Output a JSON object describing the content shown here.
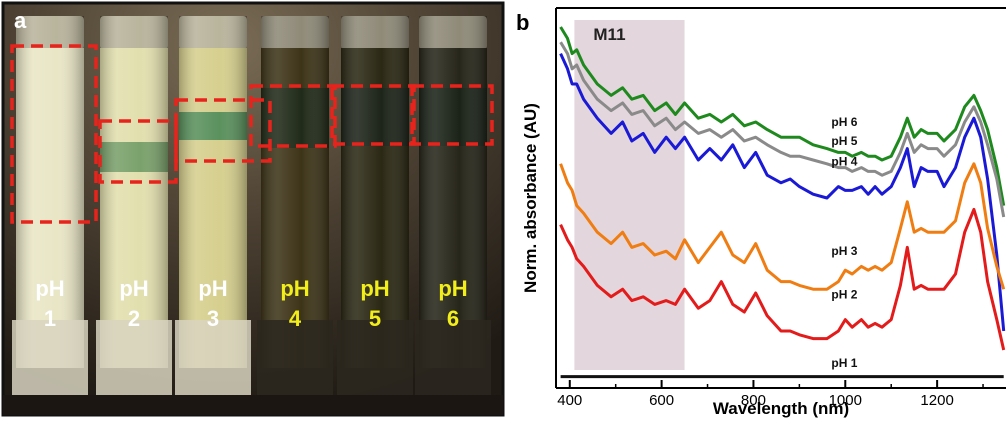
{
  "panel_a": {
    "label": "a",
    "background": "#3a3228",
    "tubes": [
      {
        "ph_word": "pH",
        "ph_num": "1",
        "label_color": "#ffffff",
        "liquid": "#e9e6c6",
        "band": null,
        "dark": false
      },
      {
        "ph_word": "pH",
        "ph_num": "2",
        "label_color": "#ffffff",
        "liquid": "#e2dfae",
        "band": "#6f9a64",
        "dark": false
      },
      {
        "ph_word": "pH",
        "ph_num": "3",
        "label_color": "#ffffff",
        "liquid": "#d6cf8e",
        "band": "#4c8a58",
        "dark": false
      },
      {
        "ph_word": "pH",
        "ph_num": "4",
        "label_color": "#f2ee1a",
        "liquid": "#3d3418",
        "band": "#1e2a1a",
        "dark": true
      },
      {
        "ph_word": "pH",
        "ph_num": "5",
        "label_color": "#f2ee1a",
        "liquid": "#2b2814",
        "band": "#1c2419",
        "dark": true
      },
      {
        "ph_word": "pH",
        "ph_num": "6",
        "label_color": "#f2ee1a",
        "liquid": "#27261a",
        "band": "#1b2318",
        "dark": true
      }
    ],
    "box_color": "#e8231c"
  },
  "chart_data": {
    "panel_label": "b",
    "type": "line",
    "xlabel": "Wavelength (nm)",
    "ylabel": "Norm. absorbance (AU)",
    "xlim": [
      370,
      1350
    ],
    "ylim": [
      0,
      1
    ],
    "x_ticks": [
      400,
      600,
      800,
      1000,
      1200
    ],
    "grid": false,
    "shaded_region": {
      "label": "M11",
      "x_range": [
        410,
        650
      ],
      "color": "#d9c9d2"
    },
    "series": [
      {
        "name": "pH 6",
        "color": "#1e8a1e"
      },
      {
        "name": "pH 5",
        "color": "#8a8a8a"
      },
      {
        "name": "pH 4",
        "color": "#1a1ad6"
      },
      {
        "name": "pH 3",
        "color": "#f07d12"
      },
      {
        "name": "pH 2",
        "color": "#e31b1b"
      },
      {
        "name": "pH 1",
        "color": "#111111"
      }
    ],
    "x": [
      380,
      395,
      405,
      415,
      430,
      460,
      490,
      515,
      535,
      560,
      585,
      610,
      630,
      650,
      680,
      705,
      730,
      755,
      780,
      805,
      830,
      860,
      880,
      900,
      930,
      960,
      985,
      1000,
      1015,
      1035,
      1050,
      1065,
      1080,
      1100,
      1120,
      1135,
      1150,
      1165,
      1180,
      1200,
      1215,
      1240,
      1260,
      1280,
      1295,
      1310,
      1330,
      1345
    ],
    "values_by_series": [
      [
        0.95,
        0.92,
        0.88,
        0.89,
        0.85,
        0.8,
        0.77,
        0.79,
        0.76,
        0.77,
        0.73,
        0.75,
        0.72,
        0.75,
        0.71,
        0.72,
        0.7,
        0.72,
        0.69,
        0.7,
        0.68,
        0.66,
        0.66,
        0.66,
        0.64,
        0.63,
        0.62,
        0.62,
        0.61,
        0.62,
        0.61,
        0.61,
        0.6,
        0.61,
        0.66,
        0.71,
        0.66,
        0.68,
        0.67,
        0.67,
        0.65,
        0.68,
        0.74,
        0.77,
        0.73,
        0.68,
        0.58,
        0.48
      ],
      [
        0.91,
        0.88,
        0.84,
        0.85,
        0.81,
        0.76,
        0.73,
        0.75,
        0.72,
        0.73,
        0.69,
        0.71,
        0.68,
        0.7,
        0.67,
        0.68,
        0.66,
        0.68,
        0.65,
        0.66,
        0.64,
        0.62,
        0.61,
        0.61,
        0.6,
        0.59,
        0.58,
        0.58,
        0.57,
        0.58,
        0.57,
        0.57,
        0.56,
        0.57,
        0.62,
        0.67,
        0.62,
        0.64,
        0.63,
        0.63,
        0.61,
        0.64,
        0.7,
        0.74,
        0.7,
        0.64,
        0.55,
        0.45
      ],
      [
        0.88,
        0.84,
        0.8,
        0.8,
        0.76,
        0.71,
        0.67,
        0.7,
        0.65,
        0.67,
        0.62,
        0.66,
        0.63,
        0.66,
        0.6,
        0.63,
        0.6,
        0.64,
        0.58,
        0.62,
        0.56,
        0.54,
        0.55,
        0.53,
        0.51,
        0.5,
        0.53,
        0.52,
        0.52,
        0.53,
        0.51,
        0.53,
        0.51,
        0.53,
        0.58,
        0.63,
        0.53,
        0.58,
        0.57,
        0.57,
        0.53,
        0.58,
        0.66,
        0.71,
        0.66,
        0.55,
        0.35,
        0.15
      ],
      [
        0.59,
        0.54,
        0.52,
        0.48,
        0.46,
        0.41,
        0.38,
        0.41,
        0.37,
        0.38,
        0.35,
        0.36,
        0.34,
        0.39,
        0.33,
        0.37,
        0.41,
        0.35,
        0.33,
        0.38,
        0.31,
        0.28,
        0.28,
        0.27,
        0.26,
        0.26,
        0.28,
        0.31,
        0.3,
        0.32,
        0.31,
        0.32,
        0.31,
        0.33,
        0.42,
        0.49,
        0.41,
        0.42,
        0.41,
        0.41,
        0.41,
        0.44,
        0.54,
        0.59,
        0.54,
        0.42,
        0.32,
        0.26
      ],
      [
        0.43,
        0.39,
        0.37,
        0.34,
        0.32,
        0.27,
        0.24,
        0.26,
        0.23,
        0.24,
        0.22,
        0.23,
        0.22,
        0.26,
        0.21,
        0.23,
        0.28,
        0.22,
        0.2,
        0.25,
        0.19,
        0.15,
        0.15,
        0.14,
        0.13,
        0.13,
        0.15,
        0.18,
        0.16,
        0.18,
        0.16,
        0.17,
        0.16,
        0.18,
        0.27,
        0.37,
        0.26,
        0.27,
        0.26,
        0.26,
        0.26,
        0.3,
        0.41,
        0.47,
        0.41,
        0.28,
        0.18,
        0.1
      ],
      [
        0.03,
        0.03,
        0.03,
        0.03,
        0.03,
        0.03,
        0.03,
        0.03,
        0.03,
        0.03,
        0.03,
        0.03,
        0.03,
        0.03,
        0.03,
        0.03,
        0.03,
        0.03,
        0.03,
        0.03,
        0.03,
        0.03,
        0.03,
        0.03,
        0.03,
        0.03,
        0.03,
        0.03,
        0.03,
        0.03,
        0.03,
        0.03,
        0.03,
        0.03,
        0.03,
        0.03,
        0.03,
        0.03,
        0.03,
        0.03,
        0.03,
        0.03,
        0.03,
        0.03,
        0.03,
        0.03,
        0.03,
        0.03
      ]
    ],
    "curve_labels": [
      {
        "text": "pH 6",
        "x": 900,
        "y": 0.69
      },
      {
        "text": "pH 5",
        "x": 900,
        "y": 0.64
      },
      {
        "text": "pH 4",
        "x": 900,
        "y": 0.585
      },
      {
        "text": "pH 3",
        "x": 900,
        "y": 0.35
      },
      {
        "text": "pH 2",
        "x": 900,
        "y": 0.235
      },
      {
        "text": "pH 1",
        "x": 900,
        "y": 0.055
      }
    ]
  }
}
